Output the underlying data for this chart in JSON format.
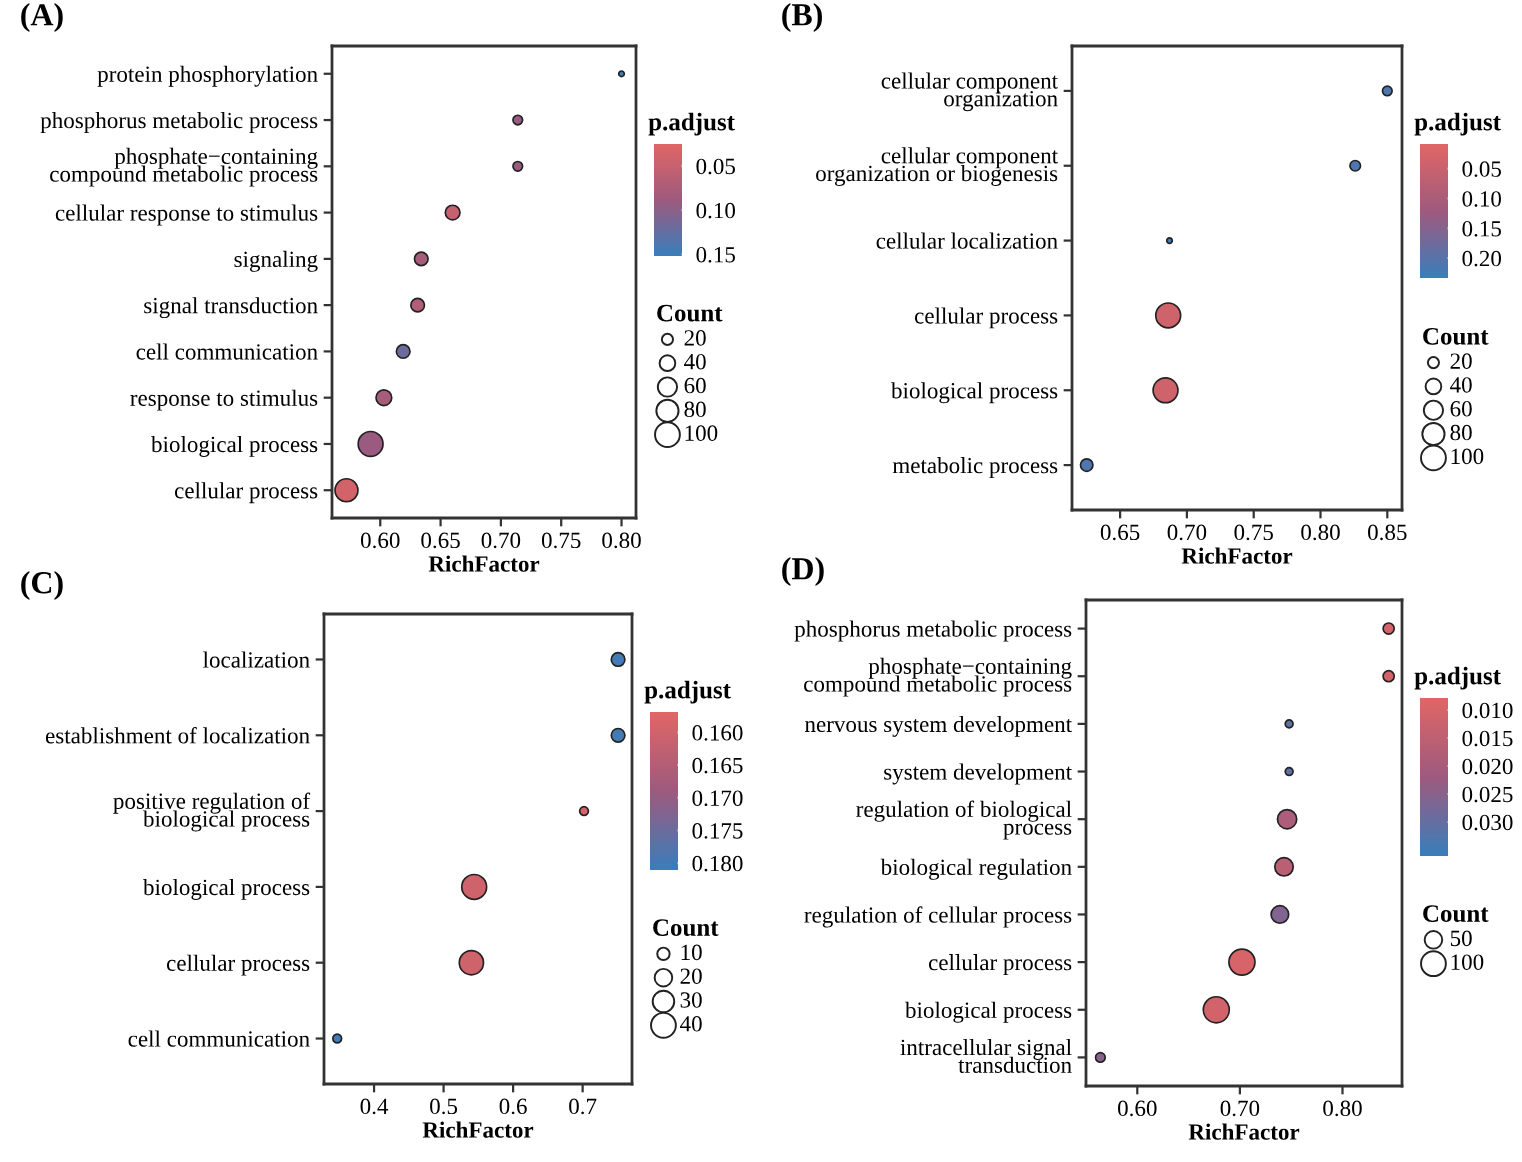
{
  "chart_data": [
    {
      "type": "bubble",
      "title": "(A)",
      "orientation": "horizontal",
      "xlabel": "RichFactor",
      "clabel": "p.adjust",
      "legend_title": "Count",
      "grid": false,
      "categories": [
        "protein phosphorylation",
        "phosphorus metabolic process",
        "phosphate−containing\ncompound metabolic process",
        "cellular response to stimulus",
        "signaling",
        "signal transduction",
        "cell communication",
        "response to stimulus",
        "biological process",
        "cellular process"
      ],
      "values": [
        0.8,
        0.714,
        0.714,
        0.66,
        0.634,
        0.631,
        0.619,
        0.603,
        0.592,
        0.572
      ],
      "sizes": [
        5,
        15,
        15,
        35,
        30,
        30,
        30,
        40,
        100,
        85
      ],
      "cvalues": [
        0.15,
        0.09,
        0.09,
        0.05,
        0.08,
        0.07,
        0.12,
        0.08,
        0.09,
        0.04
      ],
      "size_legend": [
        20,
        40,
        60,
        80,
        100
      ],
      "xlim": [
        0.56,
        0.812
      ],
      "xticks": [
        {
          "value": 0.6,
          "label": "0.60"
        },
        0.65,
        {
          "value": 0.7,
          "label": "0.70"
        },
        0.75,
        {
          "value": 0.8,
          "label": "0.80"
        }
      ],
      "clim": [
        0.026,
        0.151
      ],
      "cticks": [
        0.05,
        {
          "value": 0.1,
          "label": "0.10"
        },
        0.15
      ]
    },
    {
      "type": "bubble",
      "title": "(B)",
      "orientation": "horizontal",
      "xlabel": "RichFactor",
      "clabel": "p.adjust",
      "legend_title": "Count",
      "grid": false,
      "categories": [
        "cellular component\norganization",
        "cellular component\norganization or biogenesis",
        "cellular localization",
        "cellular process",
        "biological process",
        "metabolic process"
      ],
      "values": [
        0.85,
        0.826,
        0.687,
        0.686,
        0.684,
        0.625
      ],
      "sizes": [
        15,
        18,
        5,
        100,
        100,
        25
      ],
      "cvalues": [
        0.21,
        0.21,
        0.22,
        0.04,
        0.04,
        0.21
      ],
      "size_legend": [
        20,
        40,
        60,
        80,
        100
      ],
      "xlim": [
        0.614,
        0.861
      ],
      "xticks": [
        0.65,
        {
          "value": 0.7,
          "label": "0.70"
        },
        0.75,
        {
          "value": 0.8,
          "label": "0.80"
        },
        0.85
      ],
      "clim": [
        0.01,
        0.234
      ],
      "cticks": [
        0.05,
        {
          "value": 0.1,
          "label": "0.10"
        },
        0.15,
        {
          "value": 0.2,
          "label": "0.20"
        }
      ]
    },
    {
      "type": "bubble",
      "title": "(C)",
      "orientation": "horizontal",
      "xlabel": "RichFactor",
      "clabel": "p.adjust",
      "legend_title": "Count",
      "grid": false,
      "categories": [
        "localization",
        "establishment of localization",
        "positive regulation of\nbiological process",
        "biological process",
        "cellular process",
        "cell communication"
      ],
      "values": [
        0.751,
        0.751,
        0.702,
        0.544,
        0.54,
        0.347
      ],
      "sizes": [
        12,
        12,
        5,
        40,
        38,
        5
      ],
      "cvalues": [
        0.18,
        0.18,
        0.159,
        0.16,
        0.16,
        0.18
      ],
      "size_legend": [
        10,
        20,
        30,
        40
      ],
      "xlim": [
        0.328,
        0.771
      ],
      "xticks": [
        0.4,
        0.5,
        0.6,
        0.7
      ],
      "clim": [
        0.157,
        0.181
      ],
      "cticks": [
        {
          "value": 0.16,
          "label": "0.160"
        },
        0.165,
        {
          "value": 0.17,
          "label": "0.170"
        },
        0.175,
        {
          "value": 0.18,
          "label": "0.180"
        }
      ]
    },
    {
      "type": "bubble",
      "title": "(D)",
      "orientation": "horizontal",
      "xlabel": "RichFactor",
      "clabel": "p.adjust",
      "legend_title": "Count",
      "grid": false,
      "categories": [
        "phosphorus metabolic process",
        "phosphate−containing\ncompound metabolic process",
        "nervous system development",
        "system development",
        "regulation of biological\nprocess",
        "biological regulation",
        "regulation of cellular process",
        "cellular process",
        "biological process",
        "intracellular signal\ntransduction"
      ],
      "values": [
        0.845,
        0.845,
        0.748,
        0.748,
        0.746,
        0.743,
        0.739,
        0.702,
        0.677,
        0.564
      ],
      "sizes": [
        20,
        20,
        10,
        10,
        60,
        55,
        50,
        110,
        110,
        15
      ],
      "cvalues": [
        0.011,
        0.011,
        0.031,
        0.031,
        0.019,
        0.016,
        0.026,
        0.01,
        0.011,
        0.025
      ],
      "size_legend": [
        50,
        100
      ],
      "xlim": [
        0.55,
        0.858
      ],
      "xticks": [
        {
          "value": 0.6,
          "label": "0.60"
        },
        {
          "value": 0.7,
          "label": "0.70"
        },
        {
          "value": 0.8,
          "label": "0.80"
        }
      ],
      "clim": [
        0.008,
        0.036
      ],
      "cticks": [
        {
          "value": 0.01,
          "label": "0.010"
        },
        {
          "value": 0.015,
          "label": "0.015"
        },
        {
          "value": 0.02,
          "label": "0.020"
        },
        {
          "value": 0.025,
          "label": "0.025"
        },
        {
          "value": 0.03,
          "label": "0.030"
        }
      ]
    }
  ]
}
